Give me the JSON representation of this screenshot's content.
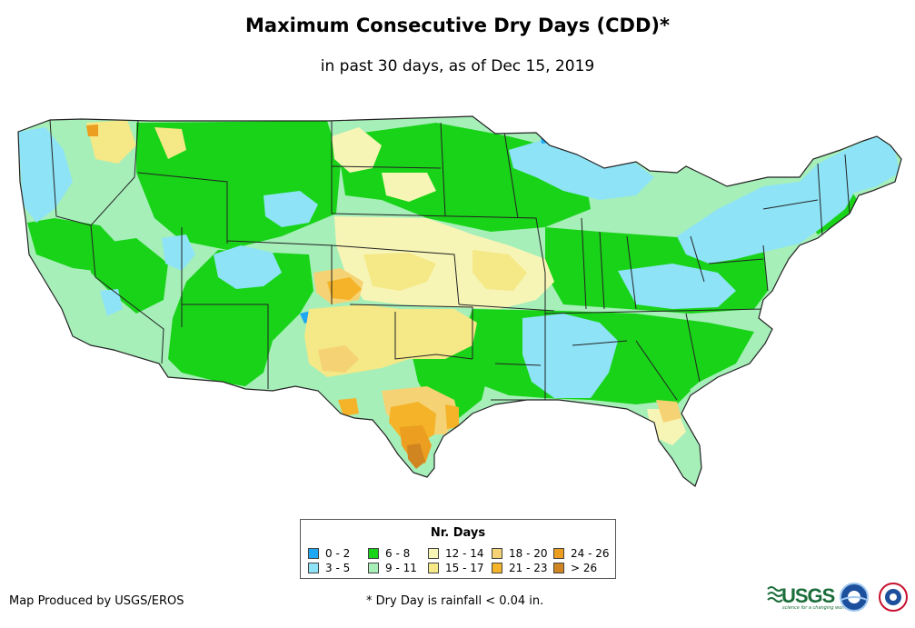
{
  "title": "Maximum Consecutive Dry Days (CDD)*",
  "subtitle": "in past 30 days, as of Dec 15, 2019",
  "legend": {
    "title": "Nr. Days",
    "items": [
      {
        "label": "0 - 2",
        "color": "#1ea7f2"
      },
      {
        "label": "3 - 5",
        "color": "#8ee3f7"
      },
      {
        "label": "6 - 8",
        "color": "#19d319"
      },
      {
        "label": "9 - 11",
        "color": "#a6efb9"
      },
      {
        "label": "12 - 14",
        "color": "#f7f5b6"
      },
      {
        "label": "15 - 17",
        "color": "#f5e886"
      },
      {
        "label": "18 - 20",
        "color": "#f5d374"
      },
      {
        "label": "21 - 23",
        "color": "#f4b328"
      },
      {
        "label": "24 - 26",
        "color": "#eb9e1f"
      },
      {
        "label": "> 26",
        "color": "#d08520"
      }
    ]
  },
  "credit": "Map Produced by USGS/EROS",
  "footnote": "* Dry Day is rainfall < 0.04 in.",
  "logos": {
    "usgs": "USGS",
    "usgs_tagline": "science for a changing world",
    "noaa": "noaa-logo",
    "nws": "nws-logo"
  }
}
